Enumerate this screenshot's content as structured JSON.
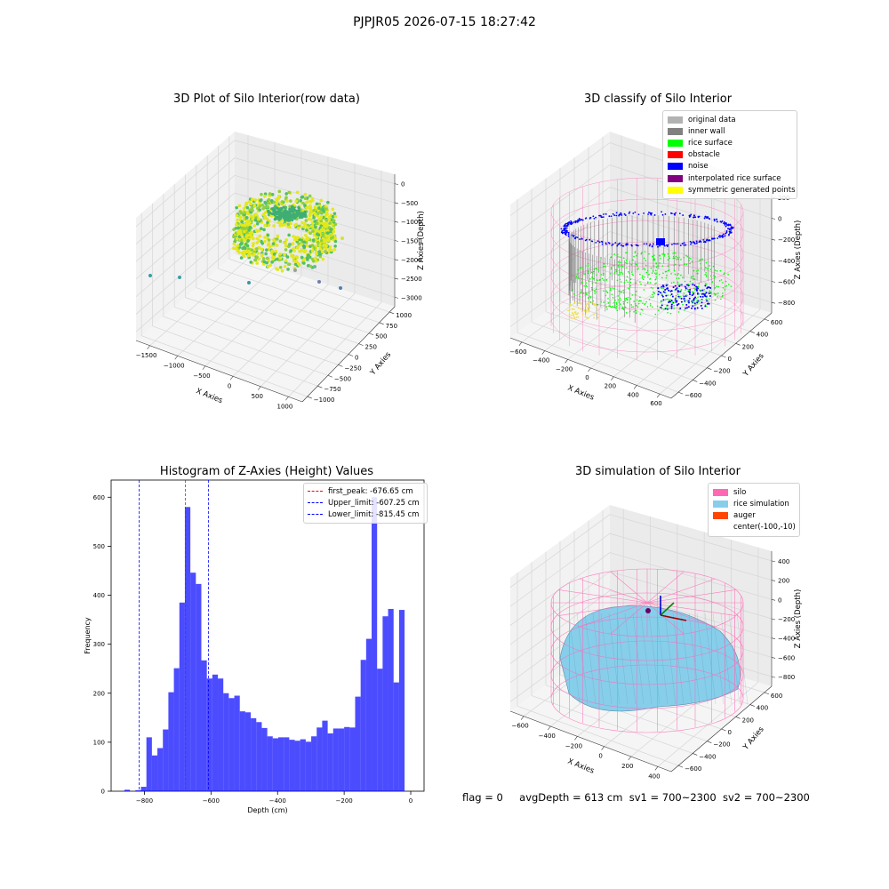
{
  "suptitle": "PJPJR05 2026-07-15 18:27:42",
  "colors": {
    "original": "#b2b2b2",
    "inner_wall": "#808080",
    "rice_surface": "#00ff00",
    "obstacle": "#ff0000",
    "noise": "#0000ff",
    "interpolated": "#800080",
    "symmetric": "#ffff00",
    "silo": "#ff69b4",
    "rice_sim": "#87ceeb",
    "auger": "#ff4500",
    "hist": "#0000ff"
  },
  "panel1": {
    "title": "3D Plot of Silo Interior(row data)",
    "xlabel": "X Axies",
    "ylabel": "Y Axies",
    "zlabel": "Z Axies (Depth)",
    "xticks": [
      "−1500",
      "−1000",
      "−500",
      "0",
      "500",
      "1000"
    ],
    "yticks": [
      "−1000",
      "−750",
      "−500",
      "−250",
      "0",
      "250",
      "500",
      "750",
      "1000"
    ],
    "zticks": [
      "0",
      "−500",
      "−1000",
      "−1500",
      "−2000",
      "−2500",
      "−3000"
    ]
  },
  "panel2": {
    "title": "3D classify of Silo Interior",
    "xlabel": "X Axies",
    "ylabel": "Y Axies",
    "zlabel": "Z Axies (Depth)",
    "xticks": [
      "−600",
      "−400",
      "−200",
      "0",
      "200",
      "400",
      "600"
    ],
    "yticks": [
      "−600",
      "−400",
      "−200",
      "0",
      "200",
      "400",
      "600"
    ],
    "zticks": [
      "200",
      "0",
      "−200",
      "−400",
      "−600",
      "−800"
    ],
    "legend": [
      "original data",
      "inner wall",
      "rice surface",
      "obstacle",
      "noise",
      "interpolated rice surface",
      "symmetric generated points"
    ]
  },
  "panel4": {
    "title": "3D simulation of Silo Interior",
    "xlabel": "X Axies",
    "ylabel": "Y Axies",
    "zlabel": "Z Axies (Depth)",
    "xticks": [
      "−600",
      "−400",
      "−200",
      "0",
      "200",
      "400"
    ],
    "yticks": [
      "−600",
      "−400",
      "−200",
      "0",
      "200",
      "400",
      "600"
    ],
    "zticks": [
      "400",
      "200",
      "0",
      "−200",
      "−400",
      "−600",
      "−800"
    ],
    "legend": [
      "silo",
      "rice simulation",
      "auger",
      "center(-100,-10)"
    ]
  },
  "status": {
    "flag": "flag = 0",
    "avg": "avgDepth = 613 cm",
    "sv1": "sv1 = 700~2300",
    "sv2": "sv2 = 700~2300"
  },
  "chart_data": [
    {
      "type": "bar",
      "title": "Histogram of Z-Axies (Height) Values",
      "xlabel": "Depth (cm)",
      "ylabel": "Frequency",
      "xlim": [
        -900,
        40
      ],
      "ylim": [
        0,
        635
      ],
      "xticks": [
        -800,
        -600,
        -400,
        -200,
        0
      ],
      "yticks": [
        0,
        100,
        200,
        300,
        400,
        500,
        600
      ],
      "bin_width": 16.5,
      "bin_start": -860,
      "values": [
        3,
        0,
        2,
        9,
        110,
        73,
        88,
        126,
        202,
        251,
        385,
        580,
        446,
        423,
        267,
        230,
        238,
        230,
        200,
        190,
        195,
        163,
        161,
        149,
        141,
        129,
        112,
        108,
        110,
        110,
        105,
        103,
        106,
        101,
        112,
        130,
        144,
        118,
        128,
        128,
        131,
        130,
        193,
        268,
        311,
        600,
        250,
        357,
        372,
        222,
        370
      ],
      "lines": [
        {
          "label": "first_peak: -676.65 cm",
          "x": -676.65,
          "color": "#ff0000"
        },
        {
          "label": "Upper_limit: -607.25 cm",
          "x": -607.25,
          "color": "#0000ff"
        },
        {
          "label": "Lower_limit: -815.45 cm",
          "x": -815.45,
          "color": "#0000ff"
        }
      ]
    }
  ]
}
